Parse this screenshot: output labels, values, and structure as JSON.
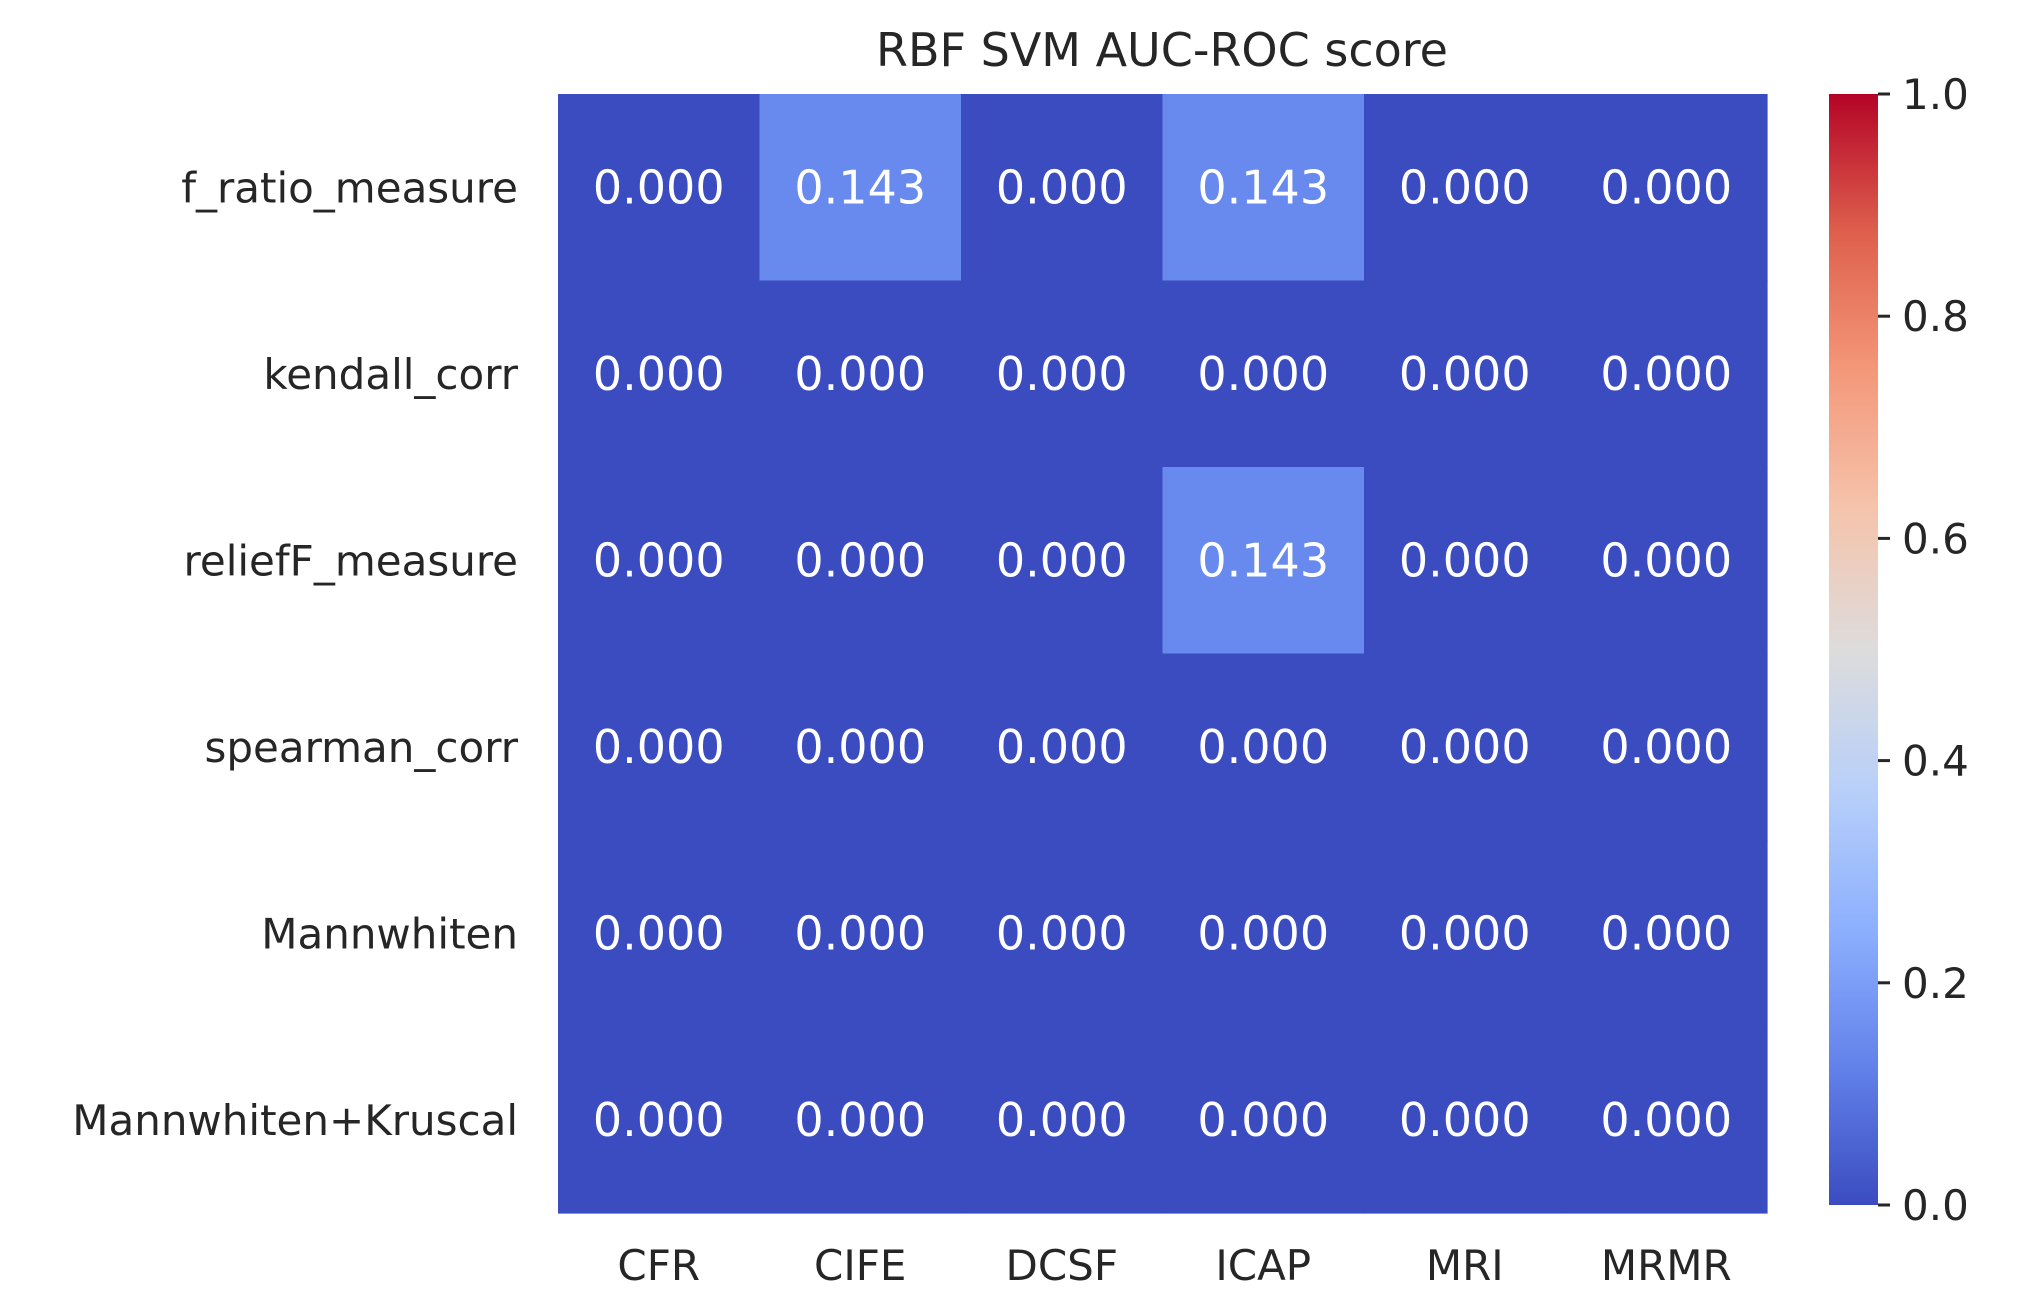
{
  "chart_data": {
    "type": "heatmap",
    "title": "RBF SVM AUC-ROC score",
    "xlabel": "",
    "ylabel": "",
    "x_categories": [
      "CFR",
      "CIFE",
      "DCSF",
      "ICAP",
      "MRI",
      "MRMR"
    ],
    "y_categories": [
      "f_ratio_measure",
      "kendall_corr",
      "reliefF_measure",
      "spearman_corr",
      "Mannwhiten",
      "Mannwhiten+Kruscal"
    ],
    "values": [
      [
        0.0,
        0.143,
        0.0,
        0.143,
        0.0,
        0.0
      ],
      [
        0.0,
        0.0,
        0.0,
        0.0,
        0.0,
        0.0
      ],
      [
        0.0,
        0.0,
        0.0,
        0.143,
        0.0,
        0.0
      ],
      [
        0.0,
        0.0,
        0.0,
        0.0,
        0.0,
        0.0
      ],
      [
        0.0,
        0.0,
        0.0,
        0.0,
        0.0,
        0.0
      ],
      [
        0.0,
        0.0,
        0.0,
        0.0,
        0.0,
        0.0
      ]
    ],
    "value_format": "0.000",
    "colormap": "coolwarm",
    "colormap_stops": [
      "#3b4cc0",
      "#6282ea",
      "#8db0fe",
      "#b8d0f9",
      "#dddcdc",
      "#f5c4ac",
      "#f4987a",
      "#de604d",
      "#b40426"
    ],
    "vmin": 0.0,
    "vmax": 1.0,
    "colorbar": {
      "ticks": [
        0.0,
        0.2,
        0.4,
        0.6,
        0.8,
        1.0
      ],
      "tick_labels": [
        "0.0",
        "0.2",
        "0.4",
        "0.6",
        "0.8",
        "1.0"
      ]
    },
    "text_color": "#ffffff",
    "label_color": "#262626",
    "grid": false
  }
}
